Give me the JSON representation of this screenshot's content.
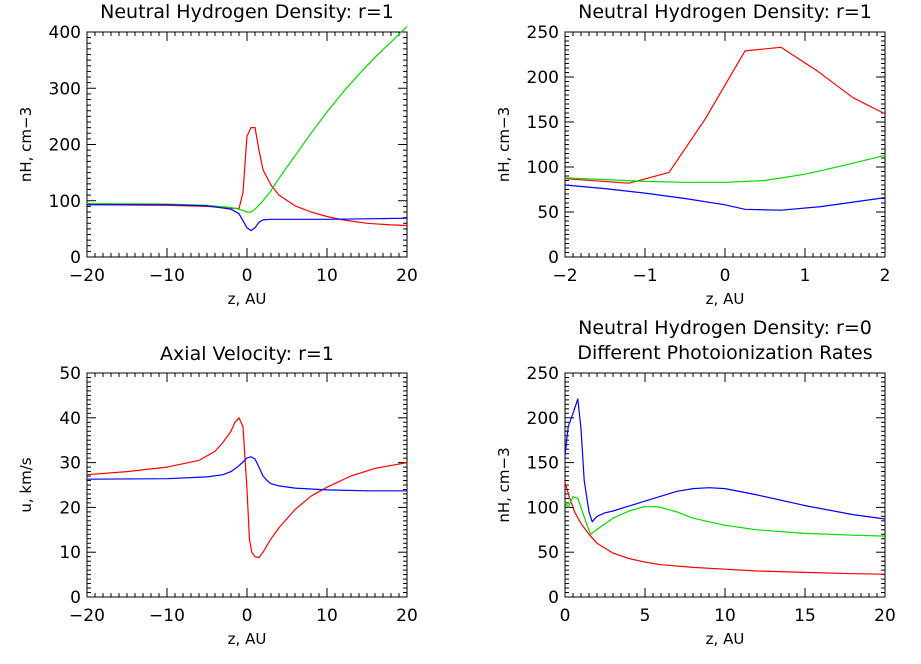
{
  "colors": {
    "red": "#ff0000",
    "green": "#00dd00",
    "blue": "#0000ff"
  },
  "chart_data": [
    {
      "type": "line",
      "titles": [
        "Neutral Hydrogen Density: r=1"
      ],
      "xlabel": "z, AU",
      "ylabel": "nH, cm−3",
      "xlim": [
        -20,
        20
      ],
      "ylim": [
        0,
        400
      ],
      "xticks": [
        -20,
        -10,
        0,
        10,
        20
      ],
      "xtick_labels": [
        "−20",
        "−10",
        "0",
        "10",
        "20"
      ],
      "yticks": [
        0,
        100,
        200,
        300,
        400
      ],
      "ytick_labels": [
        "0",
        "100",
        "200",
        "300",
        "400"
      ],
      "series": [
        {
          "color": "red",
          "x": [
            -20,
            -10,
            -5,
            -2,
            -1,
            -0.5,
            0,
            0.5,
            1,
            1.5,
            2,
            3,
            4,
            6,
            8,
            10,
            12,
            15,
            18,
            20
          ],
          "y": [
            93,
            92,
            90,
            87,
            86,
            115,
            215,
            230,
            230,
            190,
            155,
            128,
            110,
            91,
            80,
            72,
            66,
            60,
            57,
            56
          ]
        },
        {
          "color": "green",
          "x": [
            -20,
            -10,
            -5,
            -2,
            -1,
            0,
            0.5,
            1,
            2,
            3,
            4,
            6,
            8,
            10,
            12,
            14,
            16,
            18,
            20
          ],
          "y": [
            95,
            94,
            92,
            88,
            85,
            80,
            80,
            85,
            100,
            118,
            140,
            180,
            220,
            258,
            293,
            325,
            355,
            382,
            410
          ]
        },
        {
          "color": "blue",
          "x": [
            -20,
            -10,
            -5,
            -2,
            -1,
            0,
            0.5,
            1,
            1.5,
            2,
            3,
            4,
            6,
            10,
            15,
            20
          ],
          "y": [
            93,
            93,
            91,
            85,
            77,
            52,
            47,
            52,
            62,
            66,
            67,
            67,
            67,
            67,
            68,
            69
          ]
        }
      ]
    },
    {
      "type": "line",
      "titles": [
        "Neutral Hydrogen Density: r=1"
      ],
      "xlabel": "z, AU",
      "ylabel": "nH, cm−3",
      "xlim": [
        -2,
        2
      ],
      "ylim": [
        0,
        250
      ],
      "xticks": [
        -2,
        -1,
        0,
        1,
        2
      ],
      "xtick_labels": [
        "−2",
        "−1",
        "0",
        "1",
        "2"
      ],
      "yticks": [
        0,
        50,
        100,
        150,
        200,
        250
      ],
      "ytick_labels": [
        "0",
        "50",
        "100",
        "150",
        "200",
        "250"
      ],
      "series": [
        {
          "color": "red",
          "x": [
            -2,
            -1.2,
            -0.7,
            -0.25,
            0.25,
            0.7,
            1.15,
            1.6,
            2
          ],
          "y": [
            87,
            82,
            94,
            153,
            229,
            233,
            207,
            177,
            159
          ]
        },
        {
          "color": "green",
          "x": [
            -2,
            -1.5,
            -1,
            -0.5,
            0,
            0.5,
            1,
            1.5,
            2
          ],
          "y": [
            88,
            86,
            84,
            83,
            83,
            85,
            92,
            102,
            113
          ]
        },
        {
          "color": "blue",
          "x": [
            -2,
            -1.5,
            -1,
            -0.5,
            0,
            0.25,
            0.7,
            1.2,
            1.6,
            2
          ],
          "y": [
            80,
            76,
            71,
            65,
            58,
            53,
            52,
            56,
            61,
            66
          ]
        }
      ]
    },
    {
      "type": "line",
      "titles": [
        "Axial Velocity: r=1"
      ],
      "xlabel": "z, AU",
      "ylabel": "u, km/s",
      "xlim": [
        -20,
        20
      ],
      "ylim": [
        0,
        50
      ],
      "xticks": [
        -20,
        -10,
        0,
        10,
        20
      ],
      "xtick_labels": [
        "−20",
        "−10",
        "0",
        "10",
        "20"
      ],
      "yticks": [
        0,
        10,
        20,
        30,
        40,
        50
      ],
      "ytick_labels": [
        "0",
        "10",
        "20",
        "30",
        "40",
        "50"
      ],
      "series": [
        {
          "color": "red",
          "x": [
            -20,
            -15,
            -10,
            -6,
            -4,
            -3,
            -2,
            -1.5,
            -1,
            -0.5,
            0,
            0.3,
            0.6,
            1,
            1.5,
            2,
            3,
            4,
            6,
            8,
            10,
            13,
            16,
            20
          ],
          "y": [
            27.3,
            28,
            29,
            30.5,
            32.5,
            34.5,
            37,
            39,
            40,
            38,
            24,
            13,
            10,
            9,
            8.8,
            10,
            13,
            15.5,
            19.5,
            22.5,
            24.5,
            27,
            28.7,
            30
          ]
        },
        {
          "color": "blue",
          "x": [
            -20,
            -10,
            -5,
            -3,
            -2,
            -1,
            0,
            0.5,
            1,
            1.5,
            2,
            2.5,
            3,
            4,
            6,
            10,
            15,
            20
          ],
          "y": [
            26.3,
            26.4,
            26.8,
            27.3,
            28,
            29.3,
            31,
            31.3,
            30.8,
            29,
            27,
            26,
            25.3,
            24.8,
            24.3,
            23.9,
            23.7,
            23.7
          ]
        }
      ]
    },
    {
      "type": "line",
      "titles": [
        "Neutral Hydrogen Density: r=0",
        "Different Photoionization Rates"
      ],
      "xlabel": "z, AU",
      "ylabel": "nH, cm−3",
      "xlim": [
        0,
        20
      ],
      "ylim": [
        0,
        250
      ],
      "xticks": [
        0,
        5,
        10,
        15,
        20
      ],
      "xtick_labels": [
        "0",
        "5",
        "10",
        "15",
        "20"
      ],
      "yticks": [
        0,
        50,
        100,
        150,
        200,
        250
      ],
      "ytick_labels": [
        "0",
        "50",
        "100",
        "150",
        "200",
        "250"
      ],
      "series": [
        {
          "color": "red",
          "x": [
            0,
            0.3,
            0.6,
            1,
            1.5,
            2,
            3,
            4,
            5,
            6,
            8,
            10,
            12,
            15,
            18,
            20
          ],
          "y": [
            128,
            110,
            95,
            82,
            70,
            60,
            49,
            43,
            39,
            36,
            33,
            31,
            29,
            27.5,
            26,
            25.5
          ]
        },
        {
          "color": "green",
          "x": [
            0,
            0.2,
            0.5,
            0.8,
            1.0,
            1.3,
            1.6,
            2.2,
            3,
            4,
            5,
            5.5,
            6,
            7,
            8,
            10,
            12,
            15,
            18,
            20
          ],
          "y": [
            105,
            100,
            112,
            110,
            100,
            84,
            70,
            78,
            88,
            96,
            101,
            101,
            100,
            95,
            88,
            80,
            75,
            71,
            69,
            68
          ]
        },
        {
          "color": "blue",
          "x": [
            0,
            0.2,
            0.5,
            0.8,
            1.0,
            1.2,
            1.5,
            1.7,
            2,
            2.5,
            3,
            5,
            7,
            8,
            9,
            10,
            12,
            15,
            18,
            20
          ],
          "y": [
            158,
            190,
            205,
            221,
            188,
            130,
            95,
            84,
            90,
            94,
            96,
            107,
            118,
            121,
            122,
            121,
            114,
            102,
            92,
            87
          ]
        }
      ]
    }
  ]
}
